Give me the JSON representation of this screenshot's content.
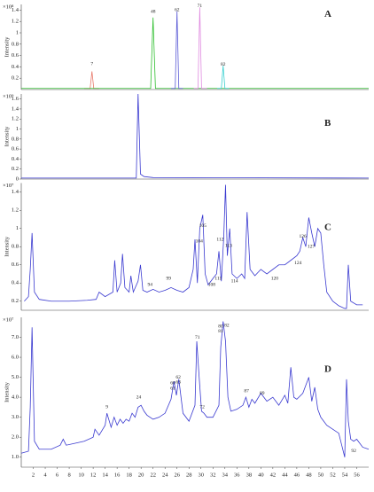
{
  "chart_data": [
    {
      "type": "line",
      "panel_label": "A",
      "y_label": "Intensity",
      "y_unit": "×10⁸",
      "xlim": [
        0,
        58
      ],
      "ylim": [
        0,
        1.5
      ],
      "yticks": [
        0.2,
        0.4,
        0.6,
        0.8,
        1,
        1.2,
        1.4
      ],
      "series": [
        {
          "color": "#e8796b",
          "x": [
            10.5,
            11.5,
            11.8,
            12.1,
            13
          ],
          "values": [
            0.02,
            0.02,
            0.32,
            0.02,
            0.02
          ]
        },
        {
          "color": "#2fbf2f",
          "x": [
            0,
            21.6,
            22,
            22.4,
            58
          ],
          "values": [
            0.02,
            0.02,
            1.27,
            0.02,
            0.02
          ]
        },
        {
          "color": "#5b5bd6",
          "x": [
            25,
            25.7,
            26,
            26.3,
            27
          ],
          "values": [
            0.02,
            0.02,
            1.38,
            0.02,
            0.02
          ]
        },
        {
          "color": "#e08be0",
          "x": [
            28.8,
            29.5,
            29.8,
            30.1,
            31
          ],
          "values": [
            0.02,
            0.02,
            1.45,
            0.02,
            0.02
          ]
        },
        {
          "color": "#38d0d0",
          "x": [
            32.7,
            33.4,
            33.7,
            34,
            34.7
          ],
          "values": [
            0.02,
            0.02,
            0.42,
            0.02,
            0.02
          ]
        }
      ],
      "peaks": [
        {
          "label": "7",
          "x": 11.8,
          "y": 0.45
        },
        {
          "label": "48",
          "x": 22,
          "y": 1.37
        },
        {
          "label": "62",
          "x": 26,
          "y": 1.4
        },
        {
          "label": "71",
          "x": 29.8,
          "y": 1.47
        },
        {
          "label": "82",
          "x": 33.7,
          "y": 0.44
        }
      ]
    },
    {
      "type": "line",
      "panel_label": "B",
      "y_label": "Intensity",
      "y_unit": "×10⁹",
      "xlim": [
        0,
        58
      ],
      "ylim": [
        0,
        1.7
      ],
      "yticks": [
        0,
        0.2,
        0.4,
        0.6,
        0.8,
        1,
        1.2,
        1.4,
        1.6
      ],
      "series": [
        {
          "color": "#3a3ad0",
          "x": [
            0,
            19.2,
            19.5,
            19.9,
            20.5,
            22,
            58
          ],
          "values": [
            0.02,
            0.02,
            1.7,
            0.1,
            0.05,
            0.03,
            0.02
          ]
        }
      ]
    },
    {
      "type": "line",
      "panel_label": "C",
      "y_label": "Intensity",
      "y_unit": "×10⁷",
      "xlim": [
        0,
        58
      ],
      "ylim": [
        0.1,
        1.5
      ],
      "yticks": [
        0.2,
        0.4,
        0.6,
        0.8,
        1,
        1.2,
        1.4
      ],
      "series": [
        {
          "color": "#3a3ad0",
          "x": [
            0.5,
            1.2,
            1.5,
            1.8,
            2.2,
            3,
            5,
            8,
            11,
            12.5,
            13,
            14,
            15.3,
            15.6,
            16,
            16.6,
            16.9,
            17.3,
            18,
            18.3,
            18.7,
            19.5,
            19.9,
            20.3,
            21,
            22,
            23,
            24,
            25,
            26,
            27,
            28,
            28.7,
            29,
            29.4,
            29.8,
            30.3,
            30.7,
            31.2,
            32,
            32.6,
            33,
            33.4,
            33.8,
            34.1,
            34.4,
            34.8,
            35.2,
            36,
            36.8,
            37.3,
            37.7,
            38.2,
            39,
            40,
            41,
            42,
            43,
            44,
            45,
            46,
            46.5,
            47,
            47.5,
            48,
            48.5,
            49,
            49.5,
            50,
            50.5,
            51,
            52,
            53,
            54,
            54.3,
            54.6,
            55,
            56,
            57
          ],
          "values": [
            0.2,
            0.25,
            0.55,
            0.95,
            0.3,
            0.22,
            0.2,
            0.2,
            0.21,
            0.22,
            0.3,
            0.25,
            0.3,
            0.65,
            0.3,
            0.4,
            0.72,
            0.35,
            0.3,
            0.48,
            0.3,
            0.42,
            0.6,
            0.32,
            0.3,
            0.33,
            0.3,
            0.32,
            0.35,
            0.32,
            0.3,
            0.35,
            0.55,
            0.88,
            0.4,
            1.0,
            1.15,
            0.5,
            0.38,
            0.45,
            0.5,
            0.75,
            0.42,
            0.9,
            1.48,
            0.7,
            1.0,
            0.5,
            0.45,
            0.5,
            0.45,
            1.18,
            0.55,
            0.48,
            0.55,
            0.5,
            0.55,
            0.6,
            0.6,
            0.65,
            0.7,
            0.75,
            0.9,
            0.8,
            1.12,
            0.95,
            0.8,
            1.0,
            0.95,
            0.6,
            0.3,
            0.2,
            0.15,
            0.12,
            0.12,
            0.6,
            0.2,
            0.16,
            0.16
          ]
        }
      ],
      "peaks": [
        {
          "label": "94",
          "x": 21.5,
          "y": 0.38
        },
        {
          "label": "99",
          "x": 24.6,
          "y": 0.45
        },
        {
          "label": "104",
          "x": 29.7,
          "y": 0.86
        },
        {
          "label": "105",
          "x": 30.3,
          "y": 1.03
        },
        {
          "label": "108",
          "x": 31.8,
          "y": 0.38
        },
        {
          "label": "111",
          "x": 32.9,
          "y": 0.45
        },
        {
          "label": "112",
          "x": 33.2,
          "y": 0.88
        },
        {
          "label": "113",
          "x": 34.6,
          "y": 0.81
        },
        {
          "label": "114",
          "x": 35.6,
          "y": 0.42
        },
        {
          "label": "120",
          "x": 42.3,
          "y": 0.45
        },
        {
          "label": "124",
          "x": 46.2,
          "y": 0.62
        },
        {
          "label": "126",
          "x": 47,
          "y": 0.91
        },
        {
          "label": "127",
          "x": 48.4,
          "y": 0.8
        }
      ]
    },
    {
      "type": "line",
      "panel_label": "D",
      "y_label": "Intensity",
      "y_unit": "×10⁷",
      "xlim": [
        0,
        58
      ],
      "ylim": [
        0.5,
        8
      ],
      "yticks": [
        {
          "value": 1,
          "label": "1.0"
        },
        {
          "value": 2,
          "label": "2.0"
        },
        {
          "value": 3,
          "label": "3.0"
        },
        {
          "value": 4,
          "label": "4.0"
        },
        {
          "value": 5,
          "label": "5.0"
        },
        {
          "value": 6,
          "label": "6.0"
        },
        {
          "value": 7,
          "label": "7.0"
        }
      ],
      "xticks": [
        2,
        4,
        6,
        8,
        10,
        12,
        14,
        16,
        18,
        20,
        22,
        24,
        26,
        28,
        30,
        32,
        34,
        36,
        38,
        40,
        42,
        44,
        46,
        48,
        50,
        52,
        54,
        56
      ],
      "series": [
        {
          "color": "#3a3ad0",
          "x": [
            0,
            1.2,
            1.5,
            1.8,
            2.2,
            3,
            5,
            6.5,
            7,
            7.5,
            9,
            10.5,
            12,
            12.3,
            13,
            14,
            14.3,
            15,
            15.5,
            16,
            16.5,
            17,
            17.5,
            18,
            18.5,
            19,
            19.5,
            20,
            20.5,
            21,
            22,
            23,
            24,
            25,
            25.5,
            25.9,
            26.3,
            27,
            28,
            29,
            29.3,
            29.7,
            30.1,
            30.5,
            31,
            32,
            33,
            33.3,
            33.7,
            34.1,
            34.5,
            35,
            36,
            37,
            37.5,
            38,
            38.5,
            39,
            40,
            41,
            42,
            43,
            44,
            44.5,
            45,
            45.5,
            46,
            47,
            48,
            48.5,
            49,
            49.5,
            50,
            51,
            52,
            53,
            54,
            54.3,
            54.6,
            55,
            55.5,
            56,
            57,
            58
          ],
          "values": [
            1.2,
            1.3,
            3.5,
            7.5,
            1.8,
            1.4,
            1.4,
            1.6,
            1.9,
            1.6,
            1.7,
            1.8,
            2.0,
            2.4,
            2.1,
            2.6,
            3.2,
            2.5,
            3.0,
            2.6,
            2.9,
            2.7,
            2.9,
            2.8,
            3.2,
            3.0,
            3.5,
            3.6,
            3.3,
            3.1,
            2.9,
            3.0,
            3.2,
            3.9,
            4.8,
            4.1,
            4.9,
            3.2,
            2.8,
            3.6,
            6.8,
            5.0,
            3.3,
            3.2,
            3.0,
            3.0,
            3.6,
            6.5,
            7.8,
            6.8,
            4.0,
            3.3,
            3.4,
            3.6,
            4.0,
            3.5,
            3.9,
            3.7,
            4.2,
            3.8,
            4.0,
            3.6,
            4.1,
            3.7,
            5.5,
            4.0,
            3.9,
            4.2,
            5.0,
            3.8,
            4.5,
            3.4,
            3.0,
            2.6,
            2.4,
            2.2,
            1.0,
            4.9,
            2.8,
            1.9,
            1.8,
            1.9,
            1.5,
            1.4
          ]
        }
      ],
      "peaks": [
        {
          "label": "9",
          "x": 14.3,
          "y": 3.5
        },
        {
          "label": "24",
          "x": 19.6,
          "y": 4.0
        },
        {
          "label": "60",
          "x": 25.3,
          "y": 4.7
        },
        {
          "label": "61",
          "x": 25.3,
          "y": 4.45
        },
        {
          "label": "62",
          "x": 26.2,
          "y": 5.0
        },
        {
          "label": "63",
          "x": 26.2,
          "y": 4.75
        },
        {
          "label": "71",
          "x": 29.4,
          "y": 7.0
        },
        {
          "label": "72",
          "x": 30.2,
          "y": 3.5
        },
        {
          "label": "80",
          "x": 33.3,
          "y": 7.55
        },
        {
          "label": "81",
          "x": 33.3,
          "y": 7.3
        },
        {
          "label": "82",
          "x": 34.3,
          "y": 7.6
        },
        {
          "label": "87",
          "x": 37.6,
          "y": 4.3
        },
        {
          "label": "89",
          "x": 40.2,
          "y": 4.2
        },
        {
          "label": "92",
          "x": 55.5,
          "y": 1.3
        }
      ]
    }
  ]
}
